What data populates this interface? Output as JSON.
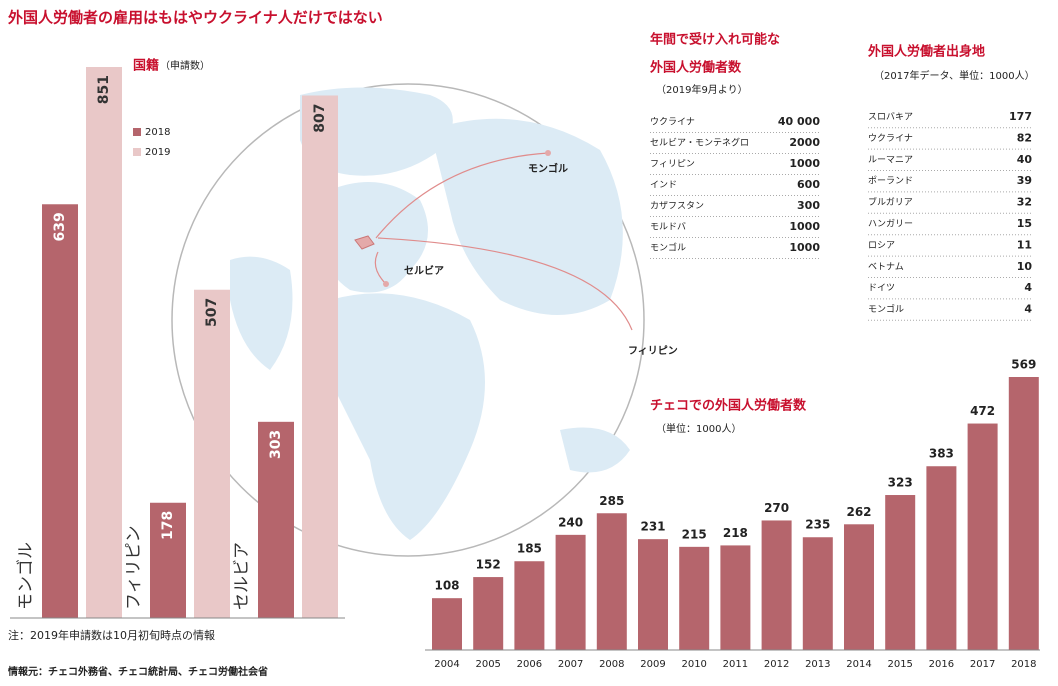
{
  "title": "外国人労働者の雇用はもはやウクライナ人だけではない",
  "note": "注：2019年申請数は10月初旬時点の情報",
  "source": "情報元：チェコ外務省、チェコ統計局、チェコ労働社会省",
  "chart_data": [
    {
      "type": "bar",
      "title": "国籍",
      "subtitle": "（申請数）",
      "categories": [
        "モンゴル",
        "フィリピン",
        "セルビア"
      ],
      "series": [
        {
          "name": "2018",
          "color": "#b5656c",
          "values": [
            639,
            178,
            303
          ]
        },
        {
          "name": "2019",
          "color": "#e9c8c8",
          "values": [
            851,
            507,
            807
          ]
        }
      ],
      "legend": "upper left"
    },
    {
      "type": "bar",
      "title": "チェコでの外国人労働者数",
      "subtitle": "（単位：1000人）",
      "categories": [
        "2004",
        "2005",
        "2006",
        "2007",
        "2008",
        "2009",
        "2010",
        "2011",
        "2012",
        "2013",
        "2014",
        "2015",
        "2016",
        "2017",
        "2018"
      ],
      "values": [
        108,
        152,
        185,
        240,
        285,
        231,
        215,
        218,
        270,
        235,
        262,
        323,
        383,
        472,
        569
      ],
      "color": "#b5656c"
    }
  ],
  "map": {
    "labels": [
      "モンゴル",
      "セルビア",
      "フィリピン"
    ]
  },
  "tables": [
    {
      "title_lines": [
        "年間で受け入れ可能な",
        "外国人労働者数"
      ],
      "subtitle": "（2019年9月より）",
      "rows": [
        [
          "ウクライナ",
          "40 000"
        ],
        [
          "セルビア・モンテネグロ",
          "2000"
        ],
        [
          "フィリピン",
          "1000"
        ],
        [
          "インド",
          "600"
        ],
        [
          "カザフスタン",
          "300"
        ],
        [
          "モルドバ",
          "1000"
        ],
        [
          "モンゴル",
          "1000"
        ]
      ]
    },
    {
      "title_lines": [
        "外国人労働者出身地"
      ],
      "subtitle": "（2017年データ、単位：1000人）",
      "rows": [
        [
          "スロバキア",
          "177"
        ],
        [
          "ウクライナ",
          "82"
        ],
        [
          "ルーマニア",
          "40"
        ],
        [
          "ポーランド",
          "39"
        ],
        [
          "ブルガリア",
          "32"
        ],
        [
          "ハンガリー",
          "15"
        ],
        [
          "ロシア",
          "11"
        ],
        [
          "ベトナム",
          "10"
        ],
        [
          "ドイツ",
          "4"
        ],
        [
          "モンゴル",
          "4"
        ]
      ]
    }
  ]
}
